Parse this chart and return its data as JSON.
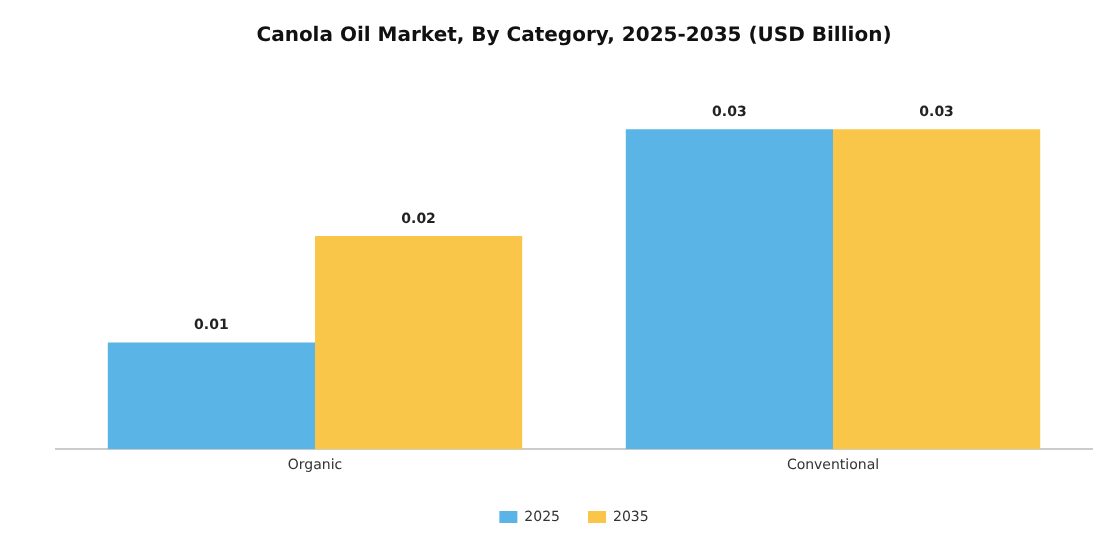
{
  "chart_data": {
    "type": "bar",
    "title": "Canola Oil Market, By Category, 2025-2035 (USD Billion)",
    "categories": [
      "Organic",
      "Conventional"
    ],
    "tick_labels": "x",
    "series": [
      {
        "name": "2025",
        "color": "#5ab4e5",
        "values": [
          0.01,
          0.03
        ]
      },
      {
        "name": "2035",
        "color": "#f9c64a",
        "values": [
          0.02,
          0.03
        ]
      }
    ],
    "data_labels": true,
    "legend": "bottom",
    "grid": false
  }
}
